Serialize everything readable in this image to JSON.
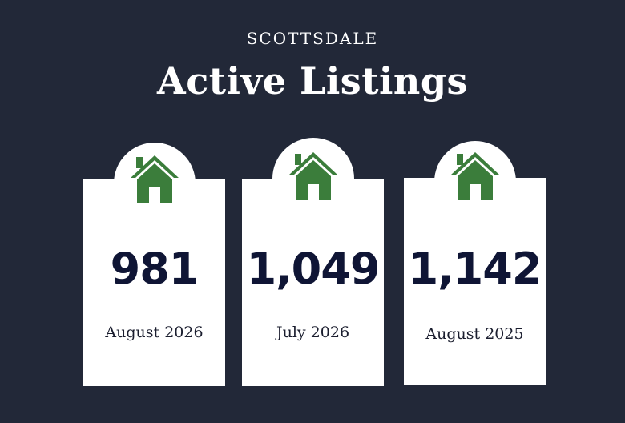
{
  "header": {
    "subtitle": "SCOTTSDALE",
    "title": "Active Listings"
  },
  "colors": {
    "background": "#222838",
    "card": "#ffffff",
    "house": "#3b7d3b",
    "value_text": "#0f1535"
  },
  "cards": [
    {
      "icon": "house-icon",
      "value": "981",
      "period": "August 2026"
    },
    {
      "icon": "house-icon",
      "value": "1,049",
      "period": "July 2026"
    },
    {
      "icon": "house-icon",
      "value": "1,142",
      "period": "August 2025"
    }
  ]
}
